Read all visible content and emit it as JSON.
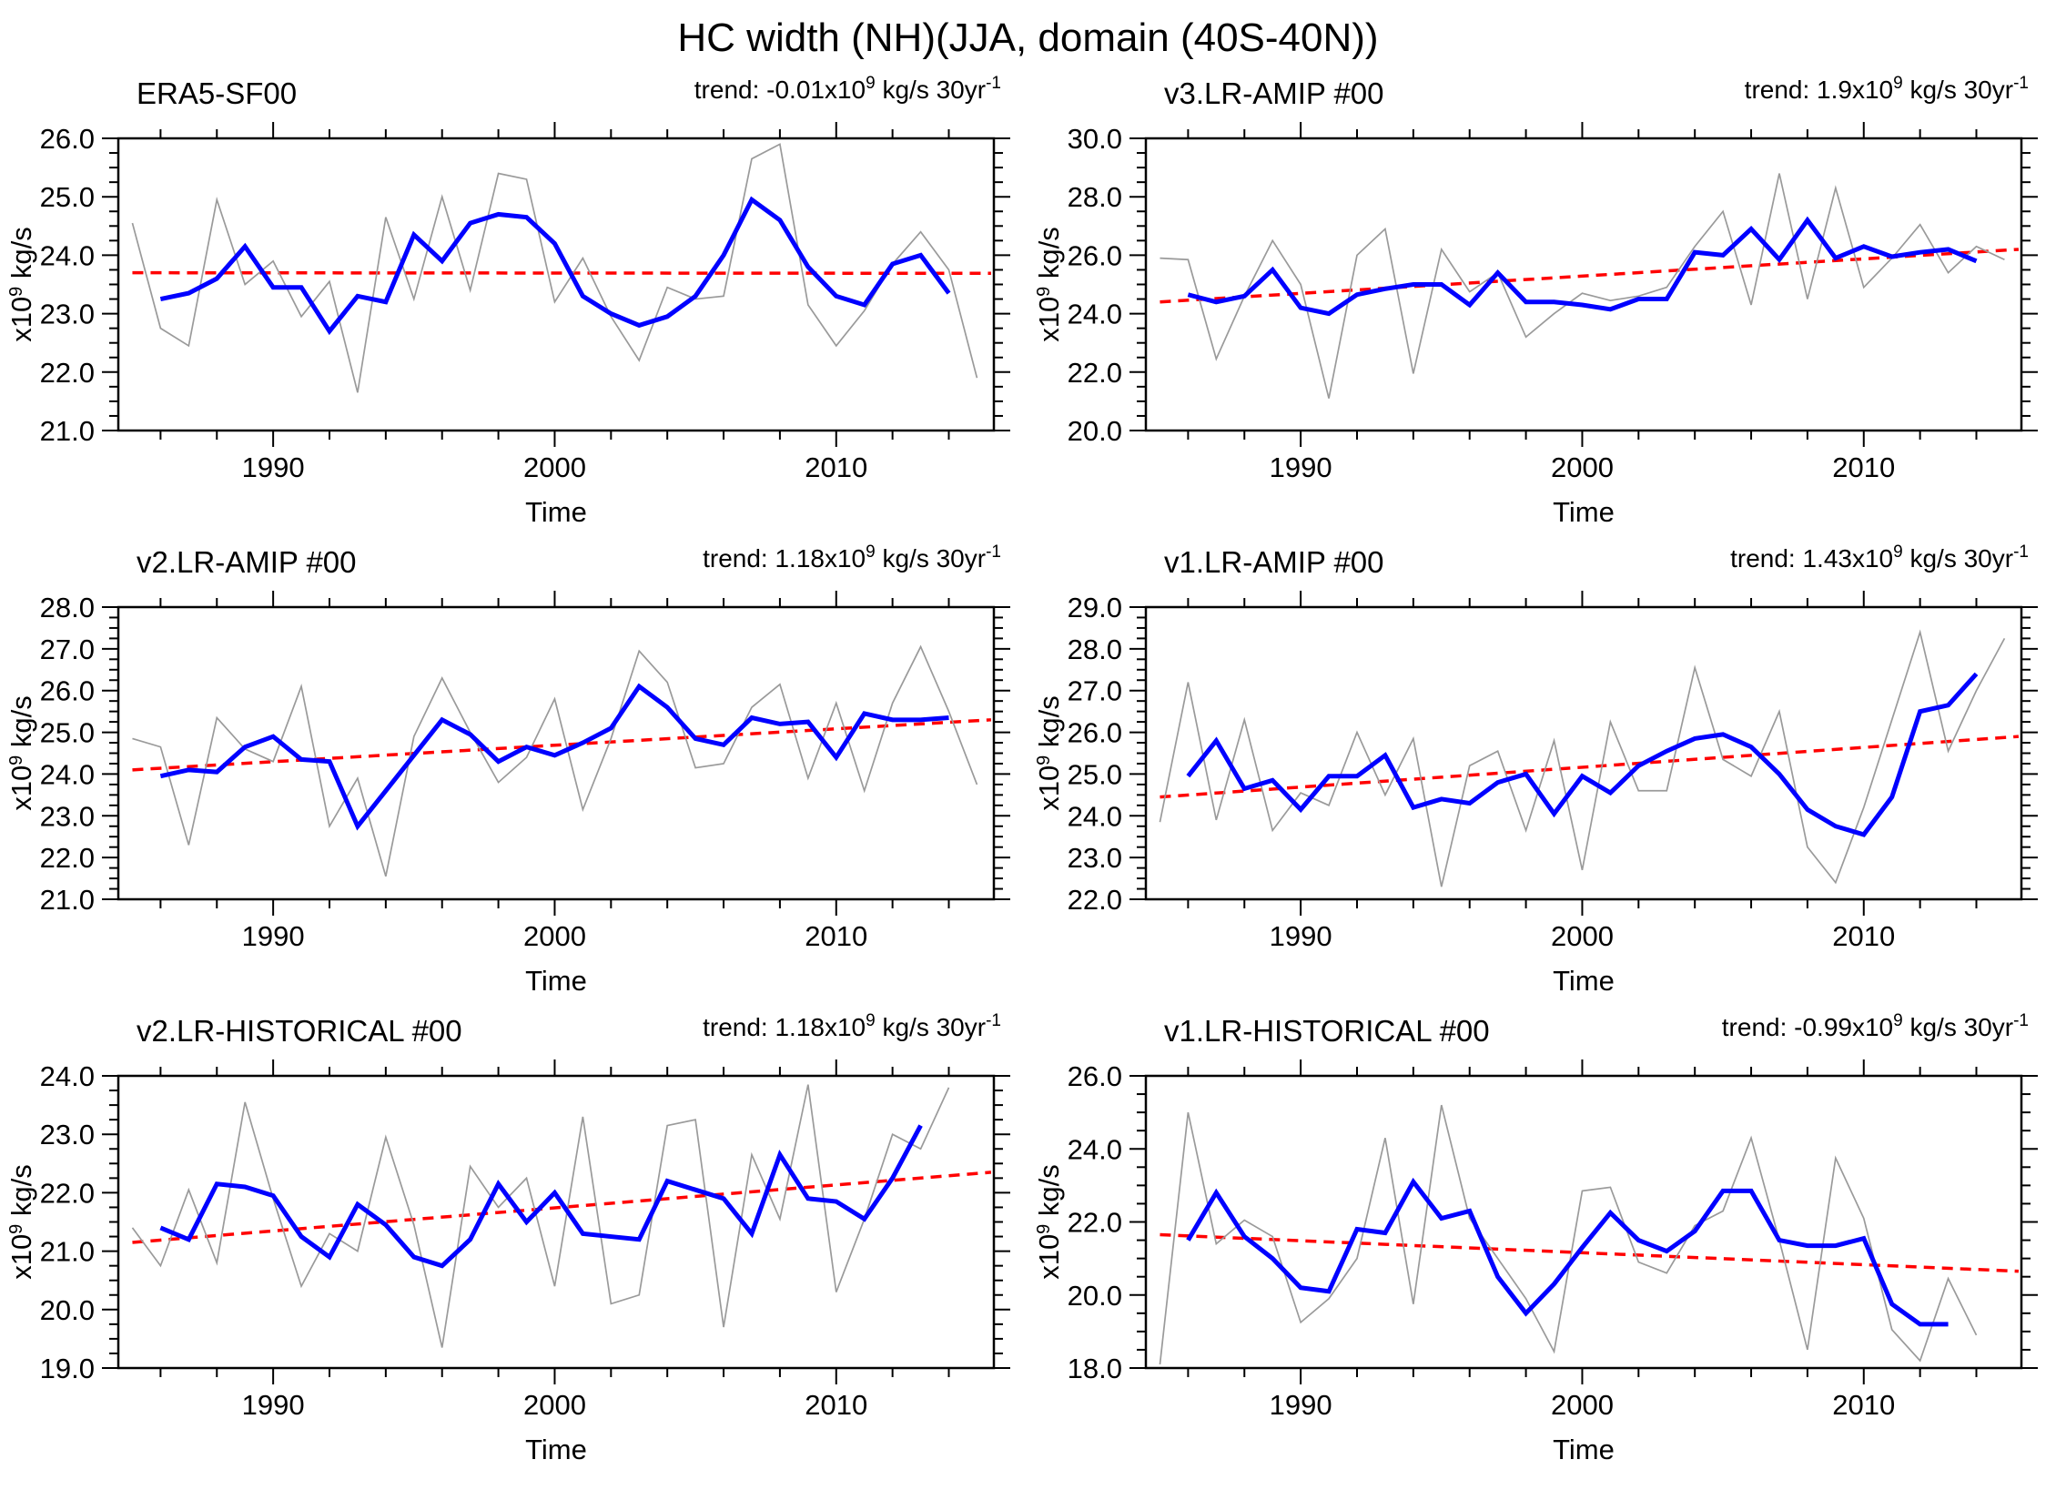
{
  "page_title": "HC width (NH)(JJA, domain (40S-40N))",
  "xlabel": "Time",
  "ylabel_parts": {
    "pre": "x10",
    "exp": "9",
    "post": " kg/s"
  },
  "trend_label_parts": {
    "prefix": "trend: ",
    "x10": "x10",
    "exp": "9",
    "units": " kg/s 30yr",
    "exp2": "-1"
  },
  "colors": {
    "raw": "#9a9a9a",
    "smooth": "#0000ff",
    "trend": "#ff0000",
    "axis": "#000000"
  },
  "x_axis": {
    "lim": [
      1984.5,
      2015.6
    ],
    "major_ticks": [
      1990,
      2000,
      2010
    ],
    "minor_start": 1986,
    "minor_step": 2,
    "minor_end": 2014
  },
  "chart_data": [
    {
      "id": "era5-sf00",
      "type": "line",
      "title": "ERA5-SF00",
      "trend_value": "-0.01",
      "ylim": [
        21.0,
        26.0
      ],
      "ymajor": 1.0,
      "yminor": 0.25,
      "raw": {
        "name": "annual",
        "start_year": 1985,
        "values": [
          24.55,
          22.75,
          22.45,
          24.95,
          23.5,
          23.9,
          22.95,
          23.55,
          21.65,
          24.65,
          23.25,
          25.0,
          23.4,
          25.4,
          25.3,
          23.2,
          23.95,
          22.95,
          22.2,
          23.45,
          23.25,
          23.3,
          25.65,
          25.9,
          23.15,
          22.45,
          23.05,
          23.85,
          24.4,
          23.75,
          21.9
        ]
      },
      "smooth": {
        "name": "running-mean",
        "start_year": 1986,
        "values": [
          23.25,
          23.35,
          23.6,
          24.15,
          23.45,
          23.45,
          22.7,
          23.3,
          23.2,
          24.35,
          23.9,
          24.55,
          24.7,
          24.65,
          24.2,
          23.3,
          23.0,
          22.8,
          22.95,
          23.3,
          24.0,
          24.95,
          24.6,
          23.8,
          23.3,
          23.15,
          23.85,
          24.0,
          23.35
        ]
      },
      "trend_line": {
        "x": [
          1985,
          2015.5
        ],
        "y": [
          23.7,
          23.69
        ]
      }
    },
    {
      "id": "v3-lr-amip",
      "type": "line",
      "title": "v3.LR-AMIP  #00",
      "trend_value": "1.9",
      "ylim": [
        20.0,
        30.0
      ],
      "ymajor": 2.0,
      "yminor": 0.5,
      "raw": {
        "name": "annual",
        "start_year": 1985,
        "values": [
          25.9,
          25.85,
          22.45,
          24.6,
          26.5,
          25.0,
          21.1,
          26.0,
          26.9,
          21.95,
          26.2,
          24.75,
          25.4,
          23.2,
          24.0,
          24.7,
          24.45,
          24.6,
          24.9,
          26.3,
          27.5,
          24.3,
          28.8,
          24.5,
          28.3,
          24.9,
          25.9,
          27.05,
          25.4,
          26.3,
          25.85
        ]
      },
      "smooth": {
        "name": "running-mean",
        "start_year": 1986,
        "values": [
          24.65,
          24.4,
          24.6,
          25.5,
          24.2,
          24.0,
          24.65,
          24.85,
          25.0,
          25.0,
          24.3,
          25.4,
          24.4,
          24.4,
          24.3,
          24.15,
          24.5,
          24.5,
          26.1,
          26.0,
          26.9,
          25.85,
          27.2,
          25.9,
          26.3,
          25.95,
          26.1,
          26.2,
          25.8
        ]
      },
      "trend_line": {
        "x": [
          1985,
          2015.5
        ],
        "y": [
          24.4,
          26.2
        ]
      }
    },
    {
      "id": "v2-lr-amip",
      "type": "line",
      "title": "v2.LR-AMIP  #00",
      "trend_value": "1.18",
      "ylim": [
        21.0,
        28.0
      ],
      "ymajor": 1.0,
      "yminor": 0.25,
      "raw": {
        "name": "annual",
        "start_year": 1985,
        "values": [
          24.85,
          24.65,
          22.3,
          25.35,
          24.6,
          24.3,
          26.1,
          22.75,
          23.9,
          21.55,
          24.9,
          26.3,
          25.0,
          23.8,
          24.4,
          25.8,
          23.15,
          24.85,
          26.95,
          26.2,
          24.15,
          24.25,
          25.6,
          26.15,
          23.9,
          25.7,
          23.6,
          25.7,
          27.05,
          25.5,
          23.75
        ]
      },
      "smooth": {
        "name": "running-mean",
        "start_year": 1986,
        "values": [
          23.95,
          24.1,
          24.05,
          24.65,
          24.9,
          24.35,
          24.3,
          22.75,
          23.6,
          24.45,
          25.3,
          24.95,
          24.3,
          24.65,
          24.45,
          24.75,
          25.1,
          26.1,
          25.6,
          24.85,
          24.7,
          25.35,
          25.2,
          25.25,
          24.4,
          25.45,
          25.3,
          25.3,
          25.35
        ]
      },
      "trend_line": {
        "x": [
          1985,
          2015.5
        ],
        "y": [
          24.1,
          25.3
        ]
      }
    },
    {
      "id": "v1-lr-amip",
      "type": "line",
      "title": "v1.LR-AMIP  #00",
      "trend_value": "1.43",
      "ylim": [
        22.0,
        29.0
      ],
      "ymajor": 1.0,
      "yminor": 0.25,
      "raw": {
        "name": "annual",
        "start_year": 1985,
        "values": [
          23.85,
          27.2,
          23.9,
          26.3,
          23.65,
          24.55,
          24.25,
          26.0,
          24.5,
          25.85,
          22.3,
          25.2,
          25.55,
          23.65,
          25.8,
          22.7,
          26.25,
          24.6,
          24.6,
          27.55,
          25.35,
          24.95,
          26.5,
          23.25,
          22.4,
          24.2,
          26.3,
          28.4,
          25.55,
          27.0,
          28.25
        ]
      },
      "smooth": {
        "name": "running-mean",
        "start_year": 1986,
        "values": [
          24.95,
          25.8,
          24.65,
          24.85,
          24.15,
          24.95,
          24.95,
          25.45,
          24.2,
          24.4,
          24.3,
          24.8,
          25.0,
          24.05,
          24.95,
          24.55,
          25.2,
          25.55,
          25.85,
          25.95,
          25.65,
          25.0,
          24.15,
          23.75,
          23.55,
          24.45,
          26.5,
          26.65,
          27.4
        ]
      },
      "trend_line": {
        "x": [
          1985,
          2015.5
        ],
        "y": [
          24.45,
          25.9
        ]
      }
    },
    {
      "id": "v2-lr-historical",
      "type": "line",
      "title": "v2.LR-HISTORICAL  #00",
      "trend_value": "1.18",
      "ylim": [
        19.0,
        24.0
      ],
      "ymajor": 1.0,
      "yminor": 0.25,
      "raw": {
        "name": "annual",
        "start_year": 1985,
        "values": [
          21.4,
          20.75,
          22.05,
          20.8,
          23.55,
          21.9,
          20.4,
          21.3,
          21.0,
          22.95,
          21.45,
          19.35,
          22.45,
          21.75,
          22.25,
          20.4,
          23.3,
          20.1,
          20.25,
          23.15,
          23.25,
          19.7,
          22.65,
          21.55,
          23.85,
          20.3,
          21.55,
          23.0,
          22.75,
          23.8
        ]
      },
      "smooth": {
        "name": "running-mean",
        "start_year": 1986,
        "values": [
          21.4,
          21.2,
          22.15,
          22.1,
          21.95,
          21.25,
          20.9,
          21.8,
          21.45,
          20.9,
          20.75,
          21.2,
          22.15,
          21.5,
          22.0,
          21.3,
          21.25,
          21.2,
          22.2,
          22.05,
          21.9,
          21.3,
          22.65,
          21.9,
          21.85,
          21.55,
          22.25,
          23.15
        ]
      },
      "trend_line": {
        "x": [
          1985,
          2015.5
        ],
        "y": [
          21.15,
          22.35
        ]
      }
    },
    {
      "id": "v1-lr-historical",
      "type": "line",
      "title": "v1.LR-HISTORICAL  #00",
      "trend_value": "-0.99",
      "ylim": [
        18.0,
        26.0
      ],
      "ymajor": 2.0,
      "yminor": 0.5,
      "raw": {
        "name": "annual",
        "start_year": 1985,
        "values": [
          18.1,
          25.0,
          21.4,
          22.05,
          21.6,
          19.25,
          19.9,
          21.0,
          24.3,
          19.75,
          25.2,
          22.1,
          21.0,
          19.9,
          18.45,
          22.85,
          22.95,
          20.9,
          20.6,
          21.9,
          22.3,
          24.3,
          21.5,
          18.5,
          23.75,
          22.1,
          19.05,
          18.2,
          20.45,
          18.9
        ]
      },
      "smooth": {
        "name": "running-mean",
        "start_year": 1986,
        "values": [
          21.5,
          22.8,
          21.6,
          21.0,
          20.2,
          20.1,
          21.8,
          21.7,
          23.1,
          22.1,
          22.3,
          20.5,
          19.5,
          20.3,
          21.3,
          22.25,
          21.5,
          21.2,
          21.75,
          22.85,
          22.85,
          21.5,
          21.35,
          21.35,
          21.55,
          19.75,
          19.2,
          19.2
        ]
      },
      "trend_line": {
        "x": [
          1985,
          2015.5
        ],
        "y": [
          21.65,
          20.65
        ]
      }
    }
  ]
}
